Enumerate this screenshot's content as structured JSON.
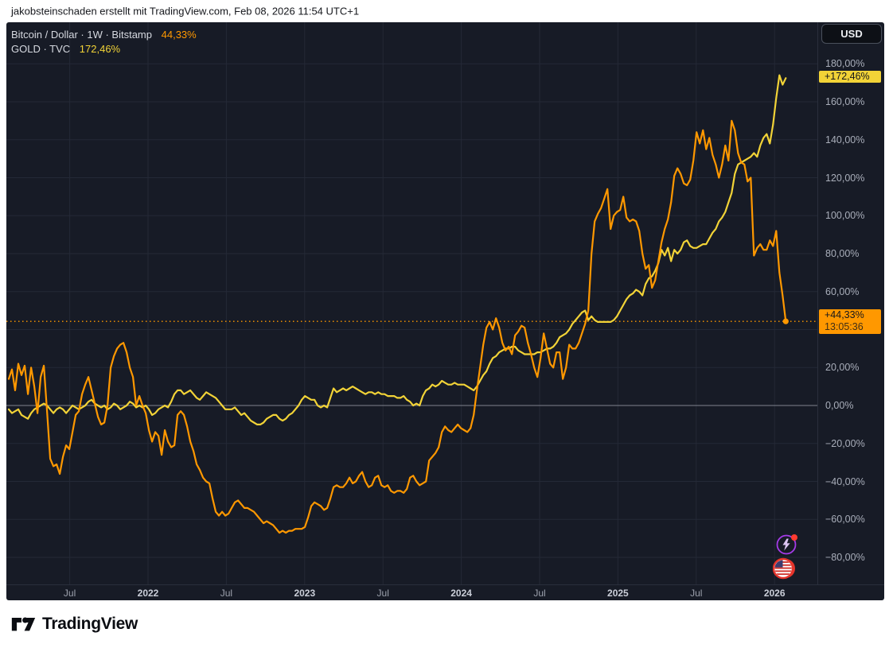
{
  "page": {
    "attribution_top": "jakobsteinschaden erstellt mit TradingView.com, Feb 08, 2026 11:54 UTC+1",
    "brand_name": "TradingView"
  },
  "toolbar": {
    "currency_button": "USD"
  },
  "legend": {
    "series1": {
      "title": "Bitcoin / Dollar · 1W · Bitstamp",
      "change": "44,33%",
      "color": "#ff9800"
    },
    "series2": {
      "title": "GOLD · TVC",
      "change": "172,46%",
      "color": "#f2d337"
    }
  },
  "badges": {
    "gold": {
      "text": "+172,46%",
      "value": 172.46,
      "bg": "#f2d337"
    },
    "btc": {
      "text": "+44,33%",
      "countdown": "13:05:36",
      "value": 44.33,
      "bg": "#ff9800"
    }
  },
  "icons": {
    "sparks": {
      "ring": "#a53be8",
      "bolt": "#dcc6f2",
      "dot": "#ff3b30"
    },
    "us_flag": {
      "ring": "#e5342b",
      "canton": "#3c3b6e",
      "stripe": "#d0342c"
    }
  },
  "chart_data": {
    "type": "line",
    "x_unit": "decimal_year",
    "x_domain": [
      2021.05,
      2026.29
    ],
    "y_domain_pct": [
      -94,
      200
    ],
    "grid": true,
    "legend_position": "top-left",
    "zero_line_pct": 0,
    "priceline": {
      "pct": 44.33,
      "color": "#ff9800",
      "style": "dotted"
    },
    "grid_pcts": [
      180,
      160,
      140,
      120,
      100,
      80,
      60,
      40,
      20,
      0,
      -20,
      -40,
      -60,
      -80
    ],
    "y_ticks": [
      {
        "pct": 180,
        "label": "180,00%"
      },
      {
        "pct": 160,
        "label": "160,00%"
      },
      {
        "pct": 140,
        "label": "140,00%"
      },
      {
        "pct": 120,
        "label": "120,00%"
      },
      {
        "pct": 100,
        "label": "100,00%"
      },
      {
        "pct": 80,
        "label": "80,00%"
      },
      {
        "pct": 60,
        "label": "60,00%"
      },
      {
        "pct": 20,
        "label": "20,00%"
      },
      {
        "pct": 0,
        "label": "0,00%"
      },
      {
        "pct": -20,
        "label": "−20,00%"
      },
      {
        "pct": -40,
        "label": "−40,00%"
      },
      {
        "pct": -60,
        "label": "−60,00%"
      },
      {
        "pct": -80,
        "label": "−80,00%"
      }
    ],
    "x_ticks": [
      {
        "t": 2021.5,
        "label": "Jul",
        "bold": false
      },
      {
        "t": 2022,
        "label": "2022",
        "bold": true
      },
      {
        "t": 2022.5,
        "label": "Jul",
        "bold": false
      },
      {
        "t": 2023,
        "label": "2023",
        "bold": true
      },
      {
        "t": 2023.5,
        "label": "Jul",
        "bold": false
      },
      {
        "t": 2024,
        "label": "2024",
        "bold": true
      },
      {
        "t": 2024.5,
        "label": "Jul",
        "bold": false
      },
      {
        "t": 2025,
        "label": "2025",
        "bold": true
      },
      {
        "t": 2025.5,
        "label": "Jul",
        "bold": false
      },
      {
        "t": 2026,
        "label": "2026",
        "bold": true
      }
    ],
    "series": [
      {
        "name": "GOLD · TVC",
        "color": "#f2d337",
        "end_marker": false,
        "t_start": 2021.111,
        "t_step": 0.02033,
        "values": [
          -2,
          -4,
          -3,
          -2,
          -5,
          -6,
          -7,
          -4,
          -2,
          -1,
          0,
          1,
          0,
          -2,
          -4,
          -2,
          -1,
          -2,
          -4,
          -2,
          0,
          -1,
          -2,
          -1,
          0,
          2,
          3,
          1,
          0,
          -1,
          0,
          -2,
          -1,
          1,
          0,
          -2,
          -1,
          0,
          2,
          1,
          -1,
          0,
          -1,
          0,
          -2,
          -5,
          -4,
          -2,
          -1,
          0,
          -1,
          2,
          6,
          8,
          8,
          6,
          7,
          8,
          6,
          4,
          3,
          5,
          7,
          6,
          5,
          4,
          2,
          0,
          -2,
          -2,
          -2,
          -1,
          -3,
          -5,
          -4,
          -6,
          -8,
          -9,
          -10,
          -10,
          -9,
          -7,
          -6,
          -5,
          -5,
          -7,
          -8,
          -7,
          -5,
          -4,
          -2,
          0,
          3,
          5,
          4,
          3,
          3,
          0,
          -1,
          0,
          -1,
          4,
          9,
          7,
          8,
          9,
          8,
          9,
          10,
          9,
          8,
          7,
          6,
          7,
          7,
          6,
          7,
          6,
          6,
          5,
          5,
          5,
          4,
          4,
          5,
          3,
          2,
          0,
          1,
          0,
          5,
          8,
          9,
          11,
          10,
          11,
          13,
          12,
          11,
          11,
          12,
          11,
          11,
          11,
          10,
          9,
          8,
          10,
          13,
          16,
          18,
          22,
          25,
          26,
          28,
          29,
          30,
          30,
          31,
          31,
          29,
          28,
          27,
          27,
          27,
          27,
          28,
          28,
          29,
          30,
          30,
          31,
          33,
          36,
          37,
          38,
          40,
          43,
          45,
          47,
          49,
          50,
          45,
          47,
          45,
          44,
          44,
          44,
          44,
          44,
          45,
          47,
          50,
          53,
          56,
          58,
          59,
          61,
          60,
          58,
          64,
          67,
          68,
          71,
          75,
          82,
          79,
          83,
          76,
          82,
          80,
          82,
          86,
          87,
          84,
          83,
          83,
          84,
          85,
          85,
          88,
          91,
          93,
          97,
          99,
          102,
          107,
          112,
          122,
          127,
          128,
          129,
          130,
          131,
          133,
          131,
          137,
          141,
          143,
          138,
          148,
          162,
          174,
          169,
          172.46
        ]
      },
      {
        "name": "Bitcoin / Dollar",
        "color": "#ff9800",
        "end_marker": true,
        "t_start": 2021.111,
        "t_step": 0.02033,
        "values": [
          14,
          19,
          8,
          22,
          16,
          21,
          6,
          20,
          10,
          -4,
          15,
          21,
          -3,
          -28,
          -32,
          -31,
          -36,
          -27,
          -21,
          -23,
          -14,
          -5,
          -3,
          6,
          11,
          15,
          8,
          1,
          -6,
          -10,
          -9,
          0,
          20,
          26,
          30,
          32,
          33,
          28,
          20,
          15,
          0,
          5,
          0,
          -4,
          -13,
          -19,
          -14,
          -16,
          -26,
          -13,
          -19,
          -22,
          -21,
          -5,
          -3,
          -5,
          -11,
          -19,
          -24,
          -31,
          -34,
          -38,
          -40,
          -41,
          -49,
          -56,
          -58,
          -56,
          -58,
          -57,
          -54,
          -51,
          -50,
          -52,
          -54,
          -54,
          -55,
          -56,
          -58,
          -60,
          -62,
          -61,
          -62,
          -63,
          -65,
          -67,
          -66,
          -67,
          -66,
          -66,
          -65,
          -65,
          -65,
          -64,
          -59,
          -53,
          -51,
          -52,
          -53,
          -55,
          -54,
          -49,
          -43,
          -42,
          -43,
          -43,
          -41,
          -38,
          -41,
          -40,
          -37,
          -35,
          -40,
          -43,
          -42,
          -38,
          -37,
          -42,
          -43,
          -42,
          -45,
          -46,
          -45,
          -45,
          -46,
          -44,
          -38,
          -37,
          -40,
          -42,
          -41,
          -40,
          -29,
          -27,
          -25,
          -22,
          -14,
          -11,
          -13,
          -14,
          -12,
          -10,
          -12,
          -13,
          -14,
          -12,
          -5,
          8,
          20,
          32,
          41,
          44,
          40,
          46,
          41,
          33,
          29,
          31,
          27,
          37,
          39,
          42,
          41,
          33,
          27,
          20,
          15,
          25,
          38,
          30,
          22,
          20,
          28,
          28,
          14,
          20,
          32,
          30,
          30,
          33,
          38,
          43,
          50,
          80,
          97,
          101,
          104,
          109,
          114,
          93,
          100,
          102,
          103,
          110,
          99,
          97,
          98,
          97,
          92,
          80,
          72,
          74,
          62,
          66,
          76,
          86,
          93,
          98,
          107,
          121,
          125,
          122,
          117,
          116,
          119,
          129,
          144,
          138,
          145,
          135,
          141,
          132,
          127,
          120,
          127,
          137,
          129,
          150,
          145,
          133,
          128,
          127,
          118,
          120,
          79,
          83,
          85,
          82,
          82,
          87,
          84,
          92,
          70,
          58,
          44.33
        ]
      }
    ]
  }
}
